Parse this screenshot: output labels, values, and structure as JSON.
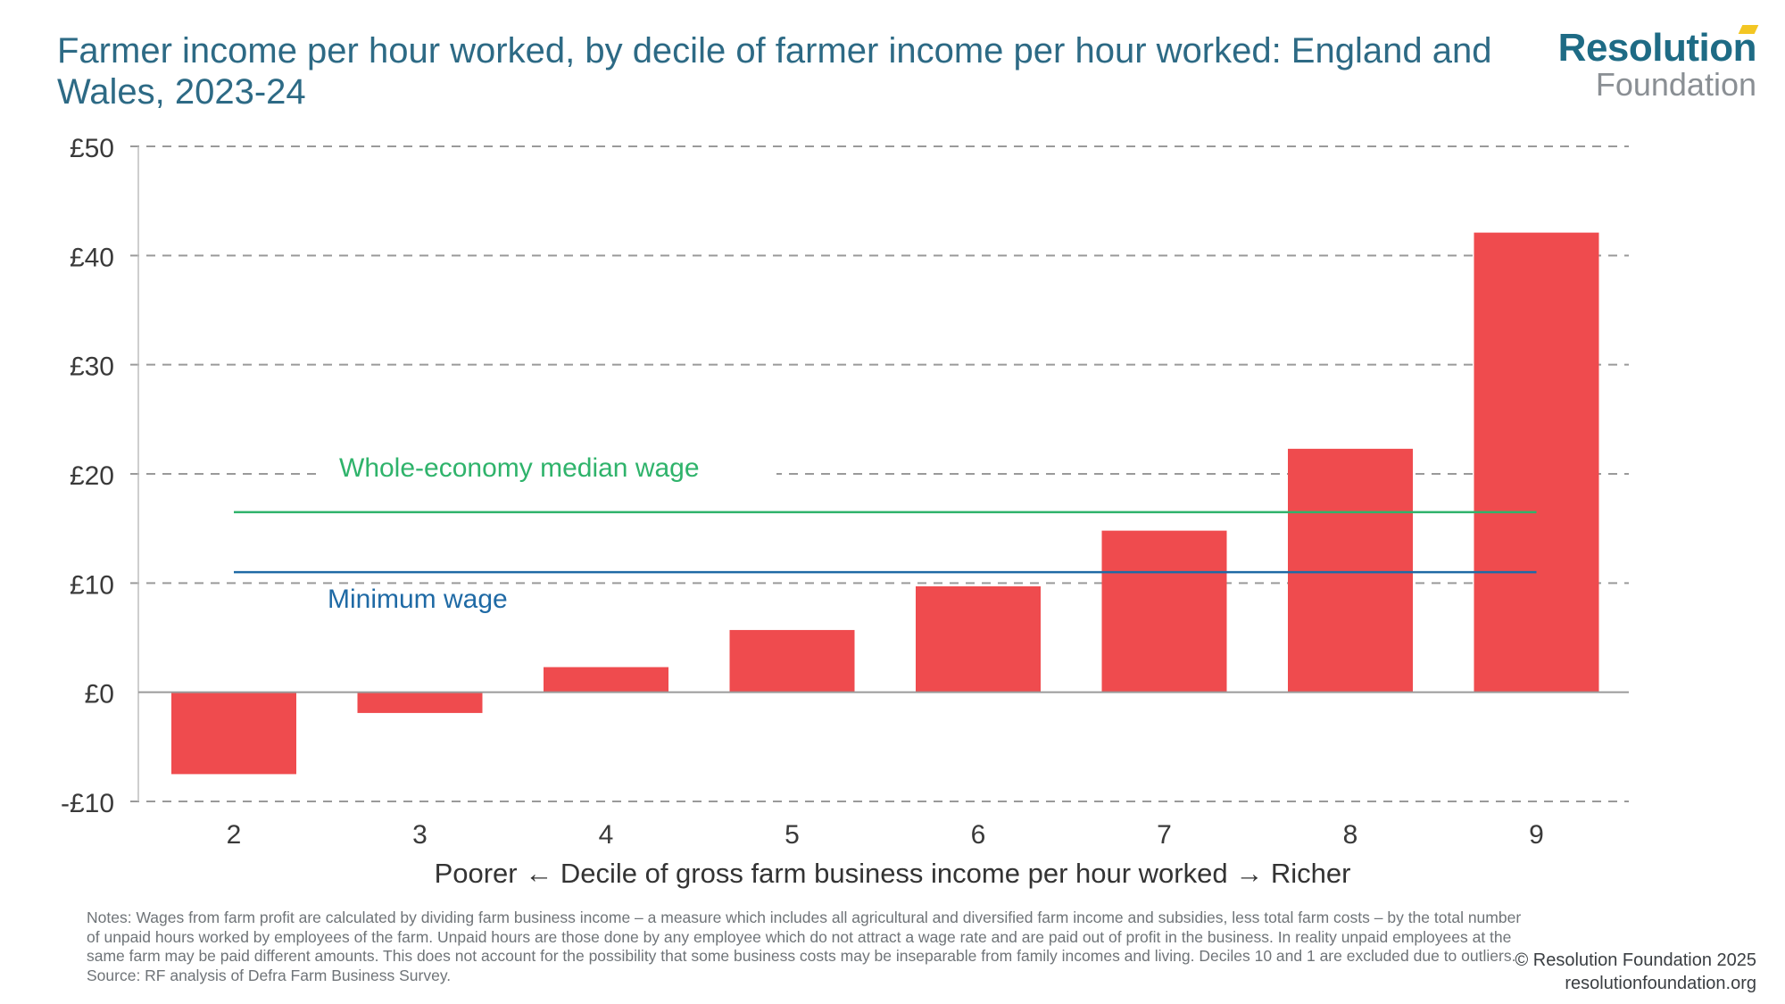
{
  "title": "Farmer income per hour worked, by decile of farmer income per hour worked: England and Wales, 2023-24",
  "logo": {
    "line1": "Resolution",
    "line2": "Foundation"
  },
  "chart_data": {
    "type": "bar",
    "categories": [
      "2",
      "3",
      "4",
      "5",
      "6",
      "7",
      "8",
      "9"
    ],
    "values": [
      -7.5,
      -1.9,
      2.3,
      5.7,
      9.7,
      14.8,
      22.3,
      42.1
    ],
    "ylim": [
      -10,
      50
    ],
    "yticks": [
      -10,
      0,
      10,
      20,
      30,
      40,
      50
    ],
    "ytick_labels": [
      "-£10",
      "£0",
      "£10",
      "£20",
      "£30",
      "£40",
      "£50"
    ],
    "xlabel": "Poorer ← Decile of gross farm business income per hour worked →  Richer",
    "ylabel": "",
    "grid": true,
    "bar_color": "#ef4b4e",
    "reference_lines": [
      {
        "label": "Whole-economy median wage",
        "value": 16.5,
        "color": "#2fb36b"
      },
      {
        "label": "Minimum wage",
        "value": 11.0,
        "color": "#1f6aa5"
      }
    ]
  },
  "notes": "Notes: Wages from farm profit are calculated by dividing farm business income – a measure which includes all agricultural and diversified farm income and subsidies, less total farm costs – by the total number of unpaid hours worked by employees of the farm. Unpaid hours are those done by any employee which do not attract a wage rate and are paid out of profit in the business. In reality unpaid employees at the same farm may be paid different amounts. This does not account for the possibility that some business costs may be inseparable from family incomes and living.  Deciles 10 and 1 are excluded due to outliers.",
  "source": "Source: RF analysis of Defra Farm Business Survey.",
  "credit": {
    "line1": "© Resolution Foundation 2025",
    "line2": "resolutionfoundation.org"
  }
}
